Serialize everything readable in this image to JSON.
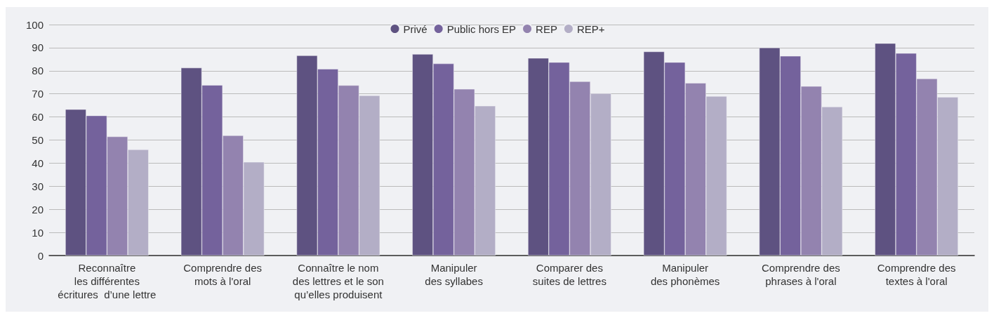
{
  "chart_data": {
    "type": "bar",
    "categories": [
      "Reconnaître\nles différentes\nécritures  d’une lettre",
      "Comprendre des\nmots à l'oral",
      "Connaître le nom\ndes lettres et le son\nqu’elles produisent",
      "Manipuler\ndes syllabes",
      "Comparer des\nsuites de lettres",
      "Manipuler\ndes phonèmes",
      "Comprendre des\nphrases à l'oral",
      "Comprendre des\ntextes à l'oral"
    ],
    "series": [
      {
        "name": "Privé",
        "color": "#5e5281",
        "values": [
          63.3,
          81.3,
          86.6,
          87.2,
          85.5,
          88.3,
          90.0,
          91.9
        ]
      },
      {
        "name": "Public hors EP",
        "color": "#74629c",
        "values": [
          60.6,
          73.8,
          80.8,
          83.1,
          83.7,
          83.7,
          86.4,
          87.6
        ]
      },
      {
        "name": "REP",
        "color": "#9383af",
        "values": [
          51.5,
          52.0,
          73.7,
          72.1,
          75.4,
          74.7,
          73.3,
          76.6
        ]
      },
      {
        "name": "REP+",
        "color": "#b3aec6",
        "values": [
          45.9,
          40.5,
          69.3,
          64.8,
          70.2,
          69.0,
          64.4,
          68.6
        ]
      }
    ],
    "ylim": [
      0,
      100
    ],
    "yticks": [
      0,
      10,
      20,
      30,
      40,
      50,
      60,
      70,
      80,
      90,
      100
    ],
    "grid": "y",
    "legend": "top"
  }
}
